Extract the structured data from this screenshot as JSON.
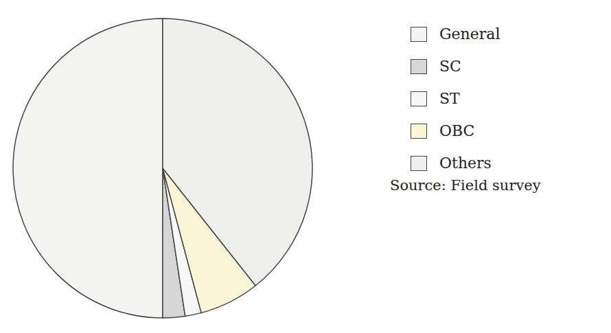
{
  "chart_data": {
    "type": "pie",
    "categories": [
      "General",
      "SC",
      "ST",
      "OBC",
      "Others"
    ],
    "values": [
      50,
      2.4,
      1.75,
      6.5,
      39.35
    ],
    "colors": [
      "#f4f4f2",
      "#d6d6d6",
      "#f7f7f7",
      "#fbf5d8",
      "#efefed"
    ],
    "legend": "right",
    "source": "Source: Field survey"
  }
}
